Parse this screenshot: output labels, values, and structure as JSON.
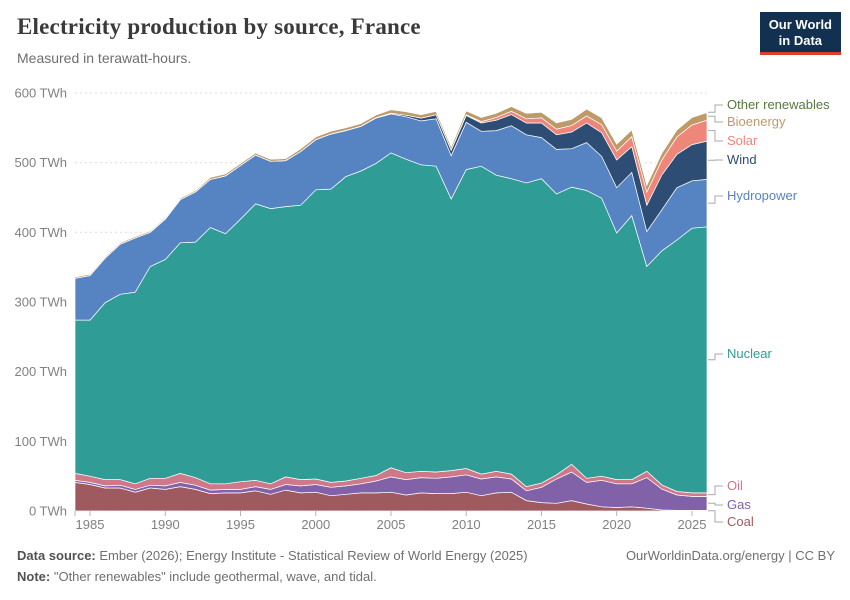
{
  "header": {
    "title": "Electricity production by source, France",
    "subtitle": "Measured in terawatt-hours.",
    "logo": {
      "line1": "Our World",
      "line2": "in Data",
      "bg": "#12304f",
      "accent": "#dc3e2d"
    }
  },
  "chart_data": {
    "type": "area",
    "stacked": true,
    "unit": "TWh",
    "xlim": [
      1984,
      2026
    ],
    "ylim": [
      0,
      600
    ],
    "grid": "dashed-horizontal",
    "legend_position": "right",
    "x_ticks": [
      1985,
      1990,
      1995,
      2000,
      2005,
      2010,
      2015,
      2020,
      2025
    ],
    "y_ticks": [
      {
        "v": 0,
        "label": "0 TWh"
      },
      {
        "v": 100,
        "label": "100 TWh"
      },
      {
        "v": 200,
        "label": "200 TWh"
      },
      {
        "v": 300,
        "label": "300 TWh"
      },
      {
        "v": 400,
        "label": "400 TWh"
      },
      {
        "v": 500,
        "label": "500 TWh"
      },
      {
        "v": 600,
        "label": "600 TWh"
      }
    ],
    "x": [
      1984,
      1985,
      1986,
      1987,
      1988,
      1989,
      1990,
      1991,
      1992,
      1993,
      1994,
      1995,
      1996,
      1997,
      1998,
      1999,
      2000,
      2001,
      2002,
      2003,
      2004,
      2005,
      2006,
      2007,
      2008,
      2009,
      2010,
      2011,
      2012,
      2013,
      2014,
      2015,
      2016,
      2017,
      2018,
      2019,
      2020,
      2021,
      2022,
      2023,
      2024,
      2025,
      2026
    ],
    "series": [
      {
        "name": "Coal",
        "color": "#9E5A5F",
        "values": [
          41,
          38,
          33,
          33,
          27,
          33,
          31,
          35,
          31,
          25,
          26,
          26,
          29,
          24,
          30,
          26,
          27,
          22,
          24,
          26,
          26,
          27,
          23,
          26,
          25,
          25,
          27,
          22,
          26,
          27,
          15,
          12,
          11,
          15,
          10,
          6,
          5,
          6,
          4,
          1.5,
          1,
          1,
          1
        ]
      },
      {
        "name": "Gas",
        "color": "#8162A8",
        "values": [
          3,
          3,
          3,
          4,
          4,
          4,
          5,
          6,
          6,
          5,
          5,
          5,
          6,
          7,
          8,
          10,
          11,
          12,
          12,
          13,
          17,
          22,
          22,
          22,
          22,
          24,
          25,
          24,
          23,
          19,
          14,
          22,
          35,
          41,
          31,
          38,
          34,
          33,
          44,
          30,
          22,
          20,
          20
        ]
      },
      {
        "name": "Oil",
        "color": "#CE7889",
        "values": [
          10,
          9,
          9,
          8,
          8,
          10,
          11,
          13,
          11,
          9,
          8,
          11,
          9,
          8,
          11,
          9,
          8,
          7,
          7,
          8,
          8,
          13,
          10,
          9,
          9,
          9,
          9,
          7,
          8,
          7,
          6,
          6,
          6,
          11,
          6,
          6,
          6,
          6,
          9,
          6,
          5,
          5,
          5
        ]
      },
      {
        "name": "Nuclear",
        "color": "#2F9C95",
        "values": [
          220,
          224,
          254,
          266,
          275,
          304,
          314,
          331,
          338,
          368,
          359,
          377,
          397,
          395,
          388,
          394,
          415,
          421,
          437,
          441,
          448,
          452,
          450,
          440,
          439,
          390,
          429,
          442,
          425,
          424,
          436,
          437,
          403,
          398,
          413,
          399,
          354,
          379,
          294,
          336,
          361,
          380,
          382
        ]
      },
      {
        "name": "Hydropower",
        "color": "#5684C2",
        "values": [
          60,
          64,
          64,
          72,
          78,
          49,
          58,
          62,
          72,
          69,
          83,
          77,
          70,
          68,
          66,
          77,
          72,
          79,
          66,
          64,
          65,
          56,
          61,
          63,
          68,
          62,
          68,
          50,
          64,
          76,
          69,
          59,
          64,
          55,
          69,
          60,
          65,
          62,
          50,
          59,
          75,
          68,
          68
        ]
      },
      {
        "name": "Wind",
        "color": "#2D4D74",
        "values": [
          0,
          0,
          0,
          0,
          0,
          0,
          0,
          0,
          0,
          0,
          0,
          0,
          0,
          0,
          0,
          0,
          0.1,
          0.1,
          0.3,
          0.4,
          0.6,
          1,
          2.2,
          4,
          5.7,
          7.9,
          9.9,
          12,
          15,
          16,
          17,
          21,
          21,
          24,
          28,
          34,
          40,
          37,
          38,
          50,
          48,
          52,
          55
        ]
      },
      {
        "name": "Solar",
        "color": "#EE8679",
        "values": [
          0,
          0,
          0,
          0,
          0,
          0,
          0,
          0,
          0,
          0,
          0,
          0,
          0,
          0,
          0,
          0,
          0,
          0,
          0,
          0,
          0,
          0,
          0,
          0,
          0,
          0.2,
          0.6,
          2,
          4,
          4.7,
          5.9,
          7.4,
          8.2,
          9.2,
          10.2,
          11.6,
          12.6,
          14.3,
          18.6,
          21.5,
          25,
          28,
          30
        ]
      },
      {
        "name": "Bioenergy",
        "color": "#BE9A68",
        "values": [
          2,
          2,
          2,
          2,
          2,
          2,
          2,
          2,
          2,
          3,
          3,
          3,
          3,
          3,
          3,
          4,
          4,
          4,
          4,
          4,
          4,
          5,
          5,
          5,
          5,
          5,
          6,
          6,
          6,
          7,
          8,
          8,
          9,
          9,
          10,
          10,
          10,
          10,
          10,
          10,
          10,
          11,
          11
        ]
      },
      {
        "name": "Other renewables",
        "color": "#577940",
        "values": [
          0.5,
          0.5,
          0.5,
          0.5,
          0.5,
          0.5,
          0.5,
          0.5,
          0.5,
          0.5,
          0.5,
          0.5,
          0.5,
          0.5,
          0.5,
          0.5,
          0.5,
          0.5,
          0.5,
          0.5,
          0.5,
          0.5,
          0.5,
          0.5,
          0.5,
          0.5,
          0.6,
          0.6,
          0.7,
          0.7,
          0.7,
          0.7,
          0.7,
          0.7,
          0.8,
          0.8,
          0.9,
          0.9,
          0.9,
          1,
          1,
          1,
          1
        ]
      }
    ]
  },
  "footer": {
    "source_label": "Data source:",
    "source_text": "Ember (2026); Energy Institute - Statistical Review of World Energy (2025)",
    "link": "OurWorldinData.org/energy | CC BY",
    "note_label": "Note:",
    "note_text": "\"Other renewables\" include geothermal, wave, and tidal."
  }
}
